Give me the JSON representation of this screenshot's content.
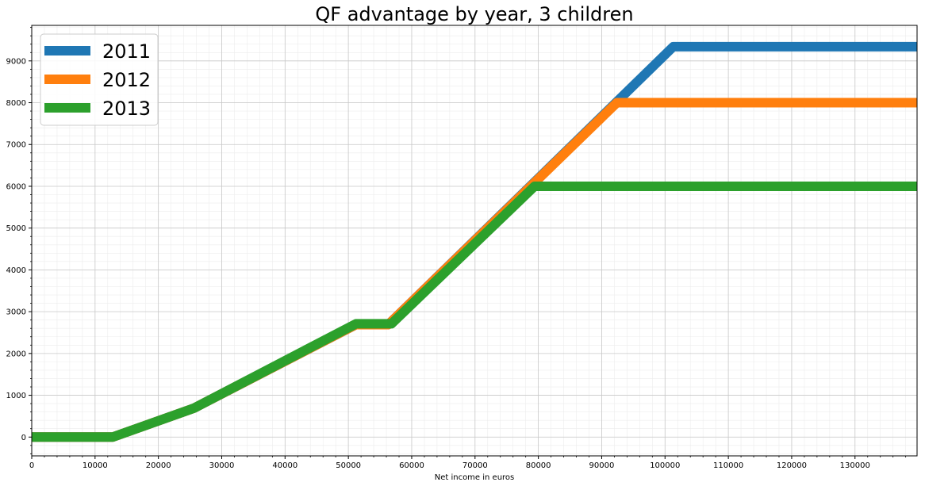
{
  "chart_data": {
    "type": "line",
    "title": "QF advantage by year, 3 children",
    "xlabel": "Net income in euros",
    "ylabel": "",
    "xlim": [
      0,
      139800
    ],
    "ylim": [
      -450,
      9850
    ],
    "x_ticks": [
      0,
      10000,
      20000,
      30000,
      40000,
      50000,
      60000,
      70000,
      80000,
      90000,
      100000,
      110000,
      120000,
      130000
    ],
    "y_ticks": [
      0,
      1000,
      2000,
      3000,
      4000,
      5000,
      6000,
      7000,
      8000,
      9000
    ],
    "x_minor_step": 2000,
    "y_minor_step": 200,
    "grid": true,
    "minor_grid": true,
    "legend_position": "top-left",
    "series": [
      {
        "name": "2011",
        "color": "#1f77b4",
        "x": [
          0,
          12800,
          25600,
          51200,
          56300,
          101300,
          139800
        ],
        "y": [
          0,
          0,
          690,
          2690,
          2690,
          9340,
          9340
        ]
      },
      {
        "name": "2012",
        "color": "#ff7f0e",
        "x": [
          0,
          12800,
          25600,
          51200,
          56300,
          92400,
          139800
        ],
        "y": [
          0,
          0,
          690,
          2690,
          2690,
          8000,
          8000
        ]
      },
      {
        "name": "2013",
        "color": "#2ca02c",
        "x": [
          0,
          12800,
          25600,
          51200,
          56800,
          79400,
          139800
        ],
        "y": [
          0,
          0,
          690,
          2710,
          2710,
          6000,
          6000
        ]
      }
    ]
  }
}
